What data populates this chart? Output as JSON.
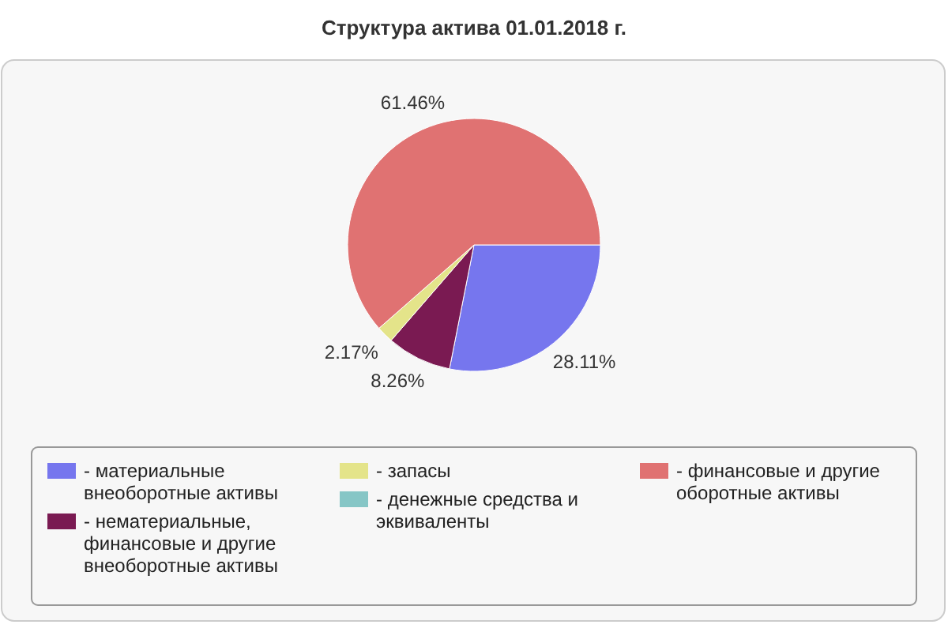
{
  "chart_data": {
    "type": "pie",
    "title": "Структура актива 01.01.2018 г.",
    "categories": [
      "- материальные внеоборотные активы",
      "- нематериальные, финансовые и другие внеоборотные активы",
      "- запасы",
      "- денежные средства и эквиваленты",
      "- финансовые и другие оборотные активы"
    ],
    "values": [
      28.11,
      8.26,
      2.17,
      0,
      61.46
    ],
    "colors": [
      "#7676ee",
      "#7a1a52",
      "#e4e48a",
      "#86c6c6",
      "#e07272"
    ],
    "value_labels": [
      "28.11%",
      "8.26%",
      "2.17%",
      null,
      "61.46%"
    ],
    "legend": "bottom"
  }
}
